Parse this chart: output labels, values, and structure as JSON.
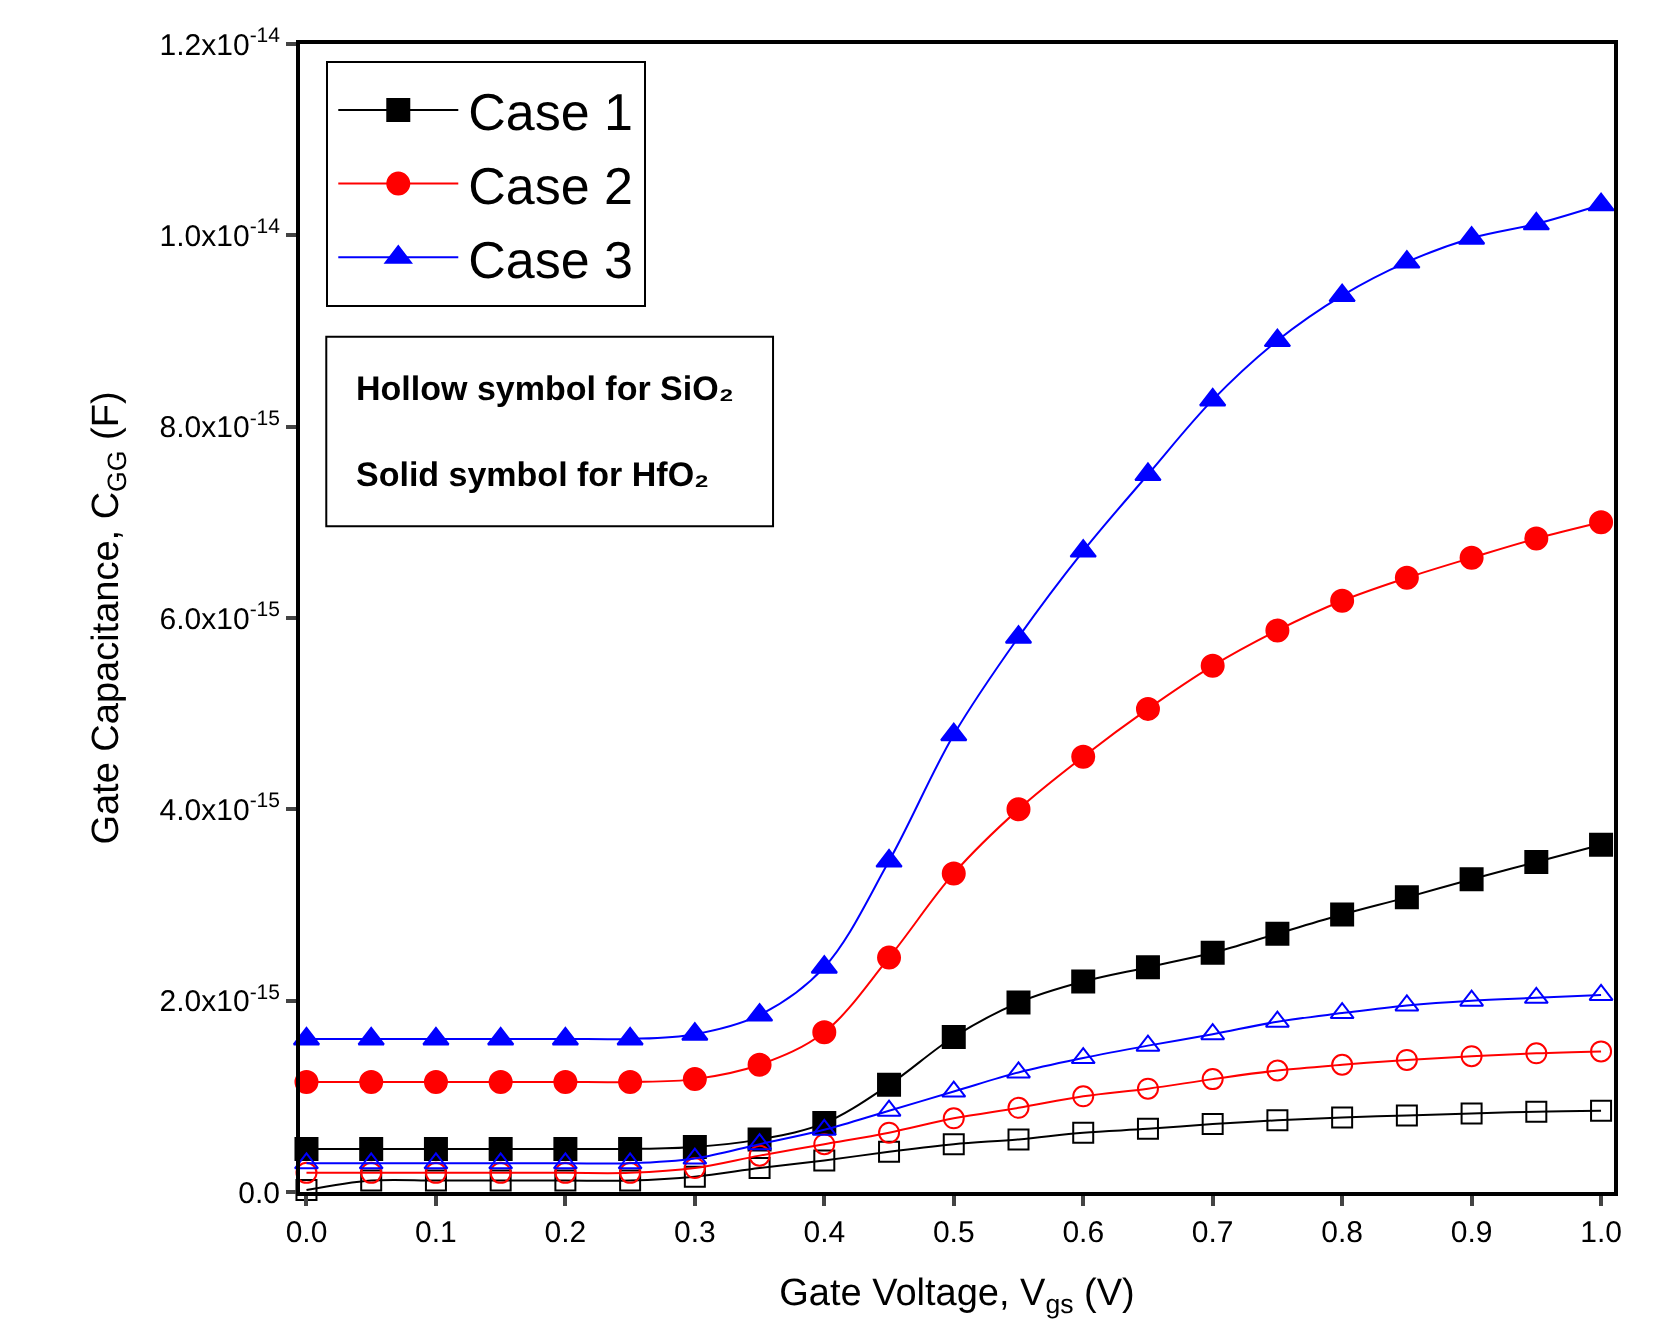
{
  "chart_data": {
    "type": "line",
    "xlabel": "Gate Voltage, V$_{gs}$ (V)",
    "ylabel": "Gate Capacitance, C$_{GG}$ (F)",
    "x": [
      0.0,
      0.05,
      0.1,
      0.15,
      0.2,
      0.25,
      0.3,
      0.35,
      0.4,
      0.45,
      0.5,
      0.55,
      0.6,
      0.65,
      0.7,
      0.75,
      0.8,
      0.85,
      0.9,
      0.95,
      1.0
    ],
    "series": [
      {
        "name": "Case 1",
        "color": "#000000",
        "marker": "square",
        "values": [
          4.5e-16,
          4.5e-16,
          4.5e-16,
          4.5e-16,
          4.5e-16,
          4.5e-16,
          4.7e-16,
          5.5e-16,
          7.2e-16,
          1.12e-15,
          1.62e-15,
          1.98e-15,
          2.2e-15,
          2.35e-15,
          2.5e-15,
          2.7e-15,
          2.9e-15,
          3.08e-15,
          3.27e-15,
          3.45e-15,
          3.63e-15
        ]
      },
      {
        "name": "Case 2",
        "color": "#ff0000",
        "marker": "circle",
        "values": [
          1.15e-15,
          1.15e-15,
          1.15e-15,
          1.15e-15,
          1.15e-15,
          1.15e-15,
          1.18e-15,
          1.33e-15,
          1.67e-15,
          2.45e-15,
          3.33e-15,
          4e-15,
          4.55e-15,
          5.05e-15,
          5.5e-15,
          5.87e-15,
          6.18e-15,
          6.42e-15,
          6.63e-15,
          6.83e-15,
          7e-15
        ]
      },
      {
        "name": "Case 3",
        "color": "#0000ff",
        "marker": "triangle",
        "values": [
          1.6e-15,
          1.6e-15,
          1.6e-15,
          1.6e-15,
          1.6e-15,
          1.6e-15,
          1.65e-15,
          1.85e-15,
          2.35e-15,
          3.46e-15,
          4.78e-15,
          5.8e-15,
          6.7e-15,
          7.5e-15,
          8.28e-15,
          8.9e-15,
          9.37e-15,
          9.72e-15,
          9.97e-15,
          1.012e-14,
          1.032e-14
        ]
      },
      {
        "color": "#000000",
        "marker": "square",
        "values": [
          2e-17,
          1.2e-16,
          1.2e-16,
          1.2e-16,
          1.2e-16,
          1.2e-16,
          1.6e-16,
          2.5e-16,
          3.3e-16,
          4.2e-16,
          5e-16,
          5.5e-16,
          6.2e-16,
          6.6e-16,
          7.1e-16,
          7.5e-16,
          7.8e-16,
          8e-16,
          8.2e-16,
          8.4e-16,
          8.5e-16
        ]
      },
      {
        "color": "#ff0000",
        "marker": "circle",
        "values": [
          2e-16,
          2e-16,
          2e-16,
          2e-16,
          2e-16,
          2e-16,
          2.5e-16,
          3.8e-16,
          5e-16,
          6.2e-16,
          7.7e-16,
          8.8e-16,
          1e-15,
          1.08e-15,
          1.18e-15,
          1.27e-15,
          1.33e-15,
          1.38e-15,
          1.42e-15,
          1.45e-15,
          1.47e-15
        ]
      },
      {
        "color": "#0000ff",
        "marker": "triangle",
        "values": [
          3e-16,
          3e-16,
          3e-16,
          3e-16,
          3e-16,
          3e-16,
          3.5e-16,
          5e-16,
          6.5e-16,
          8.5e-16,
          1.05e-15,
          1.25e-15,
          1.4e-15,
          1.53e-15,
          1.65e-15,
          1.78e-15,
          1.87e-15,
          1.95e-15,
          2e-15,
          2.03e-15,
          2.06e-15
        ]
      }
    ],
    "xlim": [
      -0.005,
      1.01
    ],
    "xticks": [
      {
        "value": 0.0,
        "label": "0.0"
      },
      0.1,
      0.2,
      0.3,
      0.4,
      0.5,
      0.6,
      0.7,
      0.8,
      0.9,
      {
        "value": 1.0,
        "label": "1.0"
      }
    ],
    "ylim": [
      0,
      1.2e-14
    ],
    "yticks": [
      {
        "value": 0,
        "label": "0.0"
      },
      {
        "value": 2e-15,
        "label": "2.0x10$^{-15}$"
      },
      {
        "value": 4e-15,
        "label": "4.0x10$^{-15}$"
      },
      {
        "value": 6e-15,
        "label": "6.0x10$^{-15}$"
      },
      {
        "value": 8e-15,
        "label": "8.0x10$^{-15}$"
      },
      {
        "value": 1e-14,
        "label": "1.0x10$^{-14}$"
      },
      {
        "value": 1.2e-14,
        "label": "1.2x10$^{-14}$"
      }
    ],
    "annotations": [
      "Hollow symbol for SiO₂",
      "Solid symbol for HfO₂"
    ],
    "legend": "top left",
    "grid": false
  }
}
